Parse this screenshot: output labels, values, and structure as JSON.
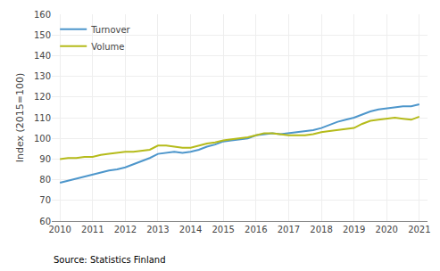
{
  "chart_data": {
    "type": "line",
    "ylabel": "Index (2015=100)",
    "annotations": [
      "Source: Statistics Finland"
    ],
    "x": [
      2010,
      2010.25,
      2010.5,
      2010.75,
      2011,
      2011.25,
      2011.5,
      2011.75,
      2012,
      2012.25,
      2012.5,
      2012.75,
      2013,
      2013.25,
      2013.5,
      2013.75,
      2014,
      2014.25,
      2014.5,
      2014.75,
      2015,
      2015.25,
      2015.5,
      2015.75,
      2016,
      2016.25,
      2016.5,
      2016.75,
      2017,
      2017.25,
      2017.5,
      2017.75,
      2018,
      2018.25,
      2018.5,
      2018.75,
      2019,
      2019.25,
      2019.5,
      2019.75,
      2020,
      2020.25,
      2020.5,
      2020.75,
      2021
    ],
    "series": [
      {
        "name": "Turnover",
        "color": "#4d96cb",
        "values": [
          78.5,
          79.5,
          80.5,
          81.5,
          82.5,
          83.5,
          84.5,
          85.0,
          86.0,
          87.5,
          89.0,
          90.5,
          92.5,
          93.0,
          93.5,
          93.0,
          93.5,
          94.5,
          96.0,
          97.0,
          98.5,
          99.0,
          99.5,
          100.0,
          101.5,
          102.0,
          102.5,
          102.0,
          102.5,
          103.0,
          103.5,
          104.0,
          105.0,
          106.5,
          108.0,
          109.0,
          110.0,
          111.5,
          113.0,
          114.0,
          114.5,
          115.0,
          115.5,
          115.5,
          116.5
        ]
      },
      {
        "name": "Volume",
        "color": "#b5bb1a",
        "values": [
          90.0,
          90.5,
          90.5,
          91.0,
          91.0,
          92.0,
          92.5,
          93.0,
          93.5,
          93.5,
          94.0,
          94.5,
          96.5,
          96.5,
          96.0,
          95.5,
          95.5,
          96.5,
          97.5,
          98.0,
          99.0,
          99.5,
          100.0,
          100.5,
          101.5,
          102.5,
          102.5,
          102.0,
          101.5,
          101.5,
          101.5,
          102.0,
          103.0,
          103.5,
          104.0,
          104.5,
          105.0,
          107.0,
          108.5,
          109.0,
          109.5,
          110.0,
          109.5,
          109.0,
          110.5
        ]
      }
    ],
    "xlim": [
      2009.75,
      2021.25
    ],
    "xticks": [
      2010,
      2011,
      2012,
      2013,
      2014,
      2015,
      2016,
      2017,
      2018,
      2019,
      2020,
      2021
    ],
    "ylim": [
      60,
      160
    ],
    "yticks": [
      60,
      70,
      80,
      90,
      100,
      110,
      120,
      130,
      140,
      150,
      160
    ],
    "grid": true,
    "legend": "upper left"
  }
}
